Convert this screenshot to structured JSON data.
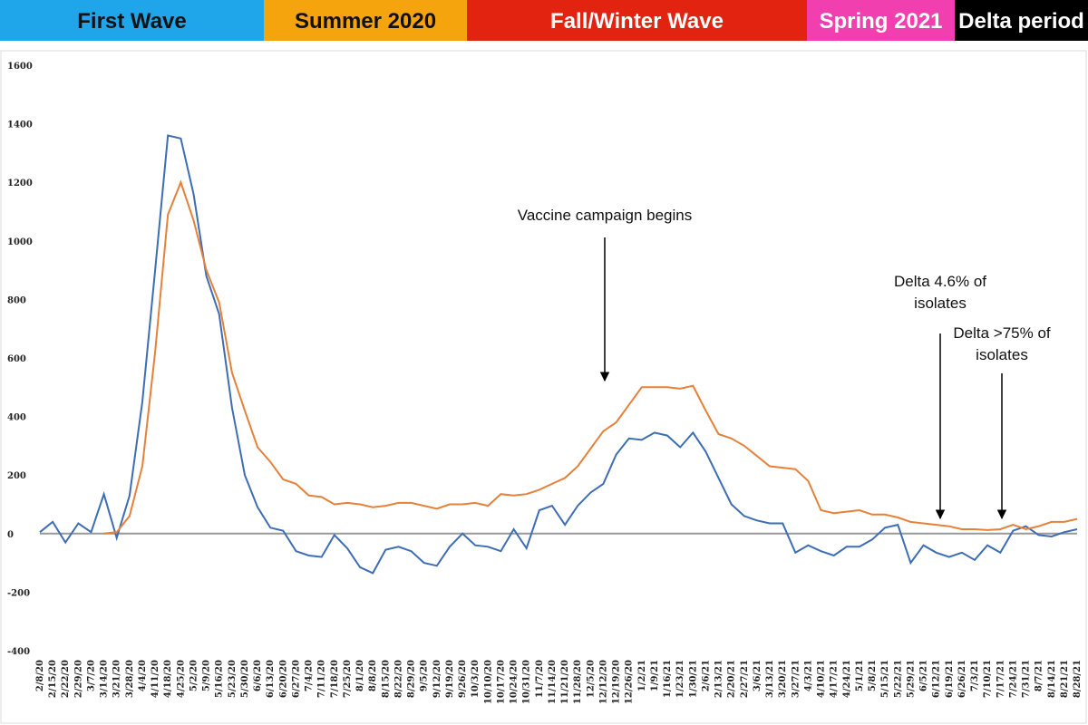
{
  "chart_data": {
    "type": "line",
    "periods": [
      {
        "label": "First Wave",
        "color": "#1ea5ea",
        "text_color": "#111111"
      },
      {
        "label": "Summer 2020",
        "color": "#f6a40e",
        "text_color": "#111111"
      },
      {
        "label": "Fall/Winter Wave",
        "color": "#e2230f",
        "text_color": "#ffffff"
      },
      {
        "label": "Spring 2021",
        "color": "#f23fb0",
        "text_color": "#ffffff"
      },
      {
        "label": "Delta period",
        "color": "#000000",
        "text_color": "#ffffff"
      }
    ],
    "annotations": [
      {
        "lines": [
          "Vaccine campaign begins"
        ]
      },
      {
        "lines": [
          "Delta 4.6% of",
          "isolates"
        ]
      },
      {
        "lines": [
          "Delta >75% of",
          "isolates"
        ]
      }
    ],
    "categories": [
      "2/8/20",
      "2/15/20",
      "2/22/20",
      "2/29/20",
      "3/7/20",
      "3/14/20",
      "3/21/20",
      "3/28/20",
      "4/4/20",
      "4/11/20",
      "4/18/20",
      "4/25/20",
      "5/2/20",
      "5/9/20",
      "5/16/20",
      "5/23/20",
      "5/30/20",
      "6/6/20",
      "6/13/20",
      "6/20/20",
      "6/27/20",
      "7/4/20",
      "7/11/20",
      "7/18/20",
      "7/25/20",
      "8/1/20",
      "8/8/20",
      "8/15/20",
      "8/22/20",
      "8/29/20",
      "9/5/20",
      "9/12/20",
      "9/19/20",
      "9/26/20",
      "10/3/20",
      "10/10/20",
      "10/17/20",
      "10/24/20",
      "10/31/20",
      "11/7/20",
      "11/14/20",
      "11/21/20",
      "11/28/20",
      "12/5/20",
      "12/12/20",
      "12/19/20",
      "12/26/20",
      "1/2/21",
      "1/9/21",
      "1/16/21",
      "1/23/21",
      "1/30/21",
      "2/6/21",
      "2/13/21",
      "2/20/21",
      "2/27/21",
      "3/6/21",
      "3/13/21",
      "3/20/21",
      "3/27/21",
      "4/3/21",
      "4/10/21",
      "4/17/21",
      "4/24/21",
      "5/1/21",
      "5/8/21",
      "5/15/21",
      "5/22/21",
      "5/29/21",
      "6/5/21",
      "6/12/21",
      "6/19/21",
      "6/26/21",
      "7/3/21",
      "7/10/21",
      "7/17/21",
      "7/24/21",
      "7/31/21",
      "8/7/21",
      "8/14/21",
      "8/21/21",
      "8/28/21"
    ],
    "series": [
      {
        "color": "#3d6db5",
        "values": [
          5,
          40,
          -30,
          35,
          5,
          135,
          -15,
          130,
          450,
          900,
          1360,
          1350,
          1160,
          880,
          750,
          430,
          200,
          90,
          20,
          10,
          -60,
          -75,
          -80,
          -5,
          -50,
          -115,
          -135,
          -55,
          -45,
          -60,
          -100,
          -110,
          -45,
          0,
          -40,
          -45,
          -60,
          15,
          -50,
          80,
          95,
          30,
          95,
          140,
          170,
          270,
          325,
          320,
          345,
          335,
          295,
          345,
          280,
          190,
          100,
          60,
          45,
          35,
          35,
          -65,
          -40,
          -60,
          -75,
          -45,
          -45,
          -20,
          20,
          30,
          -100,
          -40,
          -65,
          -80,
          -65,
          -90,
          -40,
          -65,
          10,
          25,
          -5,
          -10,
          5,
          15
        ]
      },
      {
        "color": "#e6813a",
        "values": [
          null,
          null,
          null,
          null,
          null,
          0,
          5,
          60,
          230,
          620,
          1090,
          1200,
          1070,
          900,
          790,
          550,
          420,
          295,
          245,
          185,
          170,
          130,
          125,
          100,
          105,
          100,
          90,
          95,
          105,
          105,
          95,
          85,
          100,
          100,
          105,
          95,
          135,
          130,
          135,
          150,
          170,
          190,
          230,
          290,
          350,
          380,
          440,
          500,
          500,
          500,
          495,
          505,
          420,
          340,
          325,
          300,
          265,
          230,
          225,
          220,
          180,
          80,
          70,
          75,
          80,
          65,
          65,
          55,
          40,
          35,
          30,
          25,
          15,
          15,
          12,
          15,
          30,
          15,
          25,
          40,
          40,
          50
        ]
      }
    ],
    "ylim": [
      -400,
      1600
    ],
    "yticks": [
      -400,
      -200,
      0,
      200,
      400,
      600,
      800,
      1000,
      1200,
      1400,
      1600
    ],
    "grid": false
  }
}
